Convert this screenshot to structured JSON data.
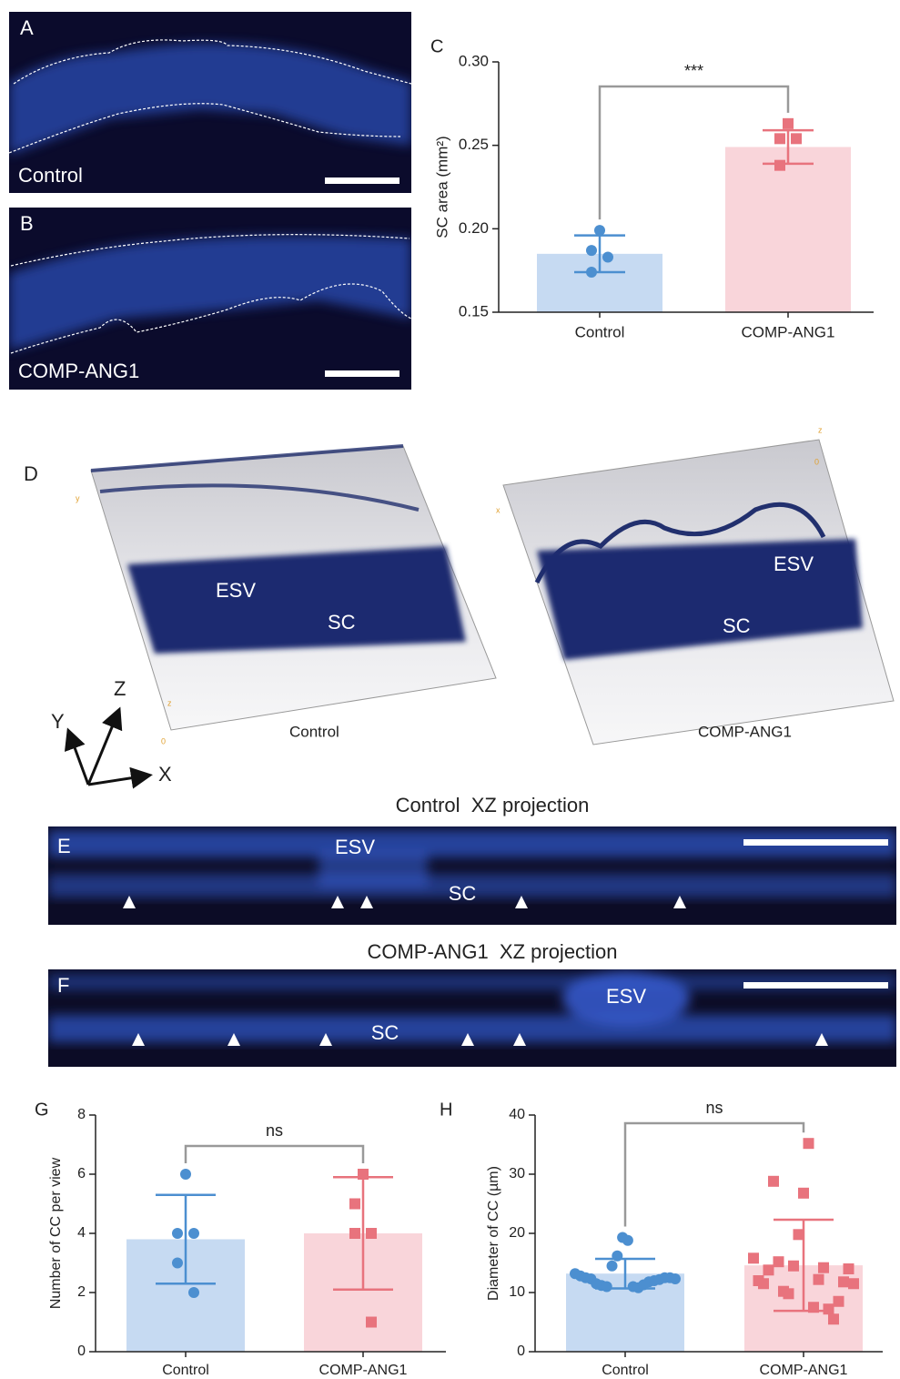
{
  "chart_data": [
    {
      "type": "bar",
      "panel": "C",
      "ylabel": "SC area (mm²)",
      "categories": [
        "Control",
        "COMP-ANG1"
      ],
      "values": [
        0.185,
        0.249
      ],
      "errors": [
        0.011,
        0.01
      ],
      "points": [
        [
          0.199,
          0.187,
          0.183,
          0.174
        ],
        [
          0.263,
          0.254,
          0.254,
          0.238
        ]
      ],
      "ylim": [
        0.15,
        0.3
      ],
      "yticks": [
        0.15,
        {
          "value": 0.2,
          "label": "0.20"
        },
        0.25,
        {
          "value": 0.3,
          "label": "0.30"
        }
      ],
      "annotation": "***",
      "bar_colors": [
        "#c6daf2",
        "#f9d5da"
      ],
      "mark_colors": [
        "#4c8fd0",
        "#e8737d"
      ],
      "markers": [
        "circle",
        "square"
      ]
    },
    {
      "type": "bar",
      "panel": "G",
      "ylabel": "Number of CC per view",
      "categories": [
        "Control",
        "COMP-ANG1"
      ],
      "values": [
        3.8,
        4.0
      ],
      "errors": [
        1.5,
        1.9
      ],
      "points": [
        [
          6,
          4,
          4,
          3,
          2
        ],
        [
          6,
          5,
          4,
          4,
          1
        ]
      ],
      "ylim": [
        0,
        8
      ],
      "yticks": [
        0,
        2,
        4,
        6,
        8
      ],
      "annotation": "ns",
      "bar_colors": [
        "#c6daf2",
        "#f9d5da"
      ],
      "mark_colors": [
        "#4c8fd0",
        "#e8737d"
      ],
      "markers": [
        "circle",
        "square"
      ]
    },
    {
      "type": "bar",
      "panel": "H",
      "ylabel": "Diameter of CC (µm)",
      "categories": [
        "Control",
        "COMP-ANG1"
      ],
      "values": [
        13.2,
        14.6
      ],
      "errors": [
        2.5,
        7.7
      ],
      "points": [
        [
          13.2,
          12.8,
          12.5,
          12.3,
          11.5,
          11.2,
          11.0,
          14.5,
          16.2,
          19.3,
          18.8,
          11.0,
          10.8,
          11.3,
          11.8,
          12.0,
          12.2,
          12.5,
          12.5,
          12.3
        ],
        [
          15.8,
          12.0,
          11.5,
          13.8,
          28.8,
          15.2,
          10.2,
          9.8,
          14.5,
          19.8,
          26.8,
          35.2,
          7.5,
          12.2,
          14.2,
          7.2,
          5.5,
          8.5,
          11.8,
          14.0,
          11.5
        ]
      ],
      "ylim": [
        0,
        40
      ],
      "yticks": [
        0,
        10,
        20,
        30,
        40
      ],
      "annotation": "ns",
      "bar_colors": [
        "#c6daf2",
        "#f9d5da"
      ],
      "mark_colors": [
        "#4c8fd0",
        "#e8737d"
      ],
      "markers": [
        "circle",
        "square"
      ]
    }
  ],
  "panels": {
    "a": {
      "letter": "A",
      "label": "Control"
    },
    "b": {
      "letter": "B",
      "label": "COMP-ANG1"
    },
    "d": {
      "letter": "D",
      "axes": [
        "Y",
        "Z",
        "X"
      ],
      "left": {
        "caption": "Control",
        "esv": "ESV",
        "sc": "SC",
        "box_labels": [
          "y",
          "z",
          "0"
        ]
      },
      "right": {
        "caption": "COMP-ANG1",
        "esv": "ESV",
        "sc": "SC",
        "box_labels": [
          "x",
          "z",
          "0"
        ]
      }
    },
    "e": {
      "letter": "E",
      "title": "Control  XZ projection",
      "esv": "ESV",
      "sc": "SC"
    },
    "f": {
      "letter": "F",
      "title": "COMP-ANG1  XZ projection",
      "esv": "ESV",
      "sc": "SC"
    }
  }
}
